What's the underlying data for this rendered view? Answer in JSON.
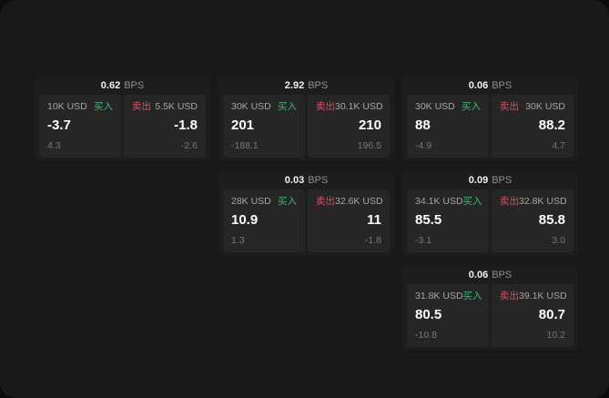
{
  "labels": {
    "bps_unit": "BPS",
    "buy": "买入",
    "sell": "卖出"
  },
  "colors": {
    "backdrop": "#0c0c0c",
    "surface": "#191919",
    "card": "#1d1d1d",
    "panel": "#262626",
    "buy_green": "#3dba76",
    "sell_red": "#cf5466"
  },
  "cards": [
    {
      "bps": "0.62",
      "buy": {
        "amount": "10K USD",
        "price": "-3.7",
        "change": "4.3"
      },
      "sell": {
        "amount": "5.5K USD",
        "price": "-1.8",
        "change": "-2.6"
      }
    },
    {
      "bps": "2.92",
      "buy": {
        "amount": "30K USD",
        "price": "201",
        "change": "-188.1"
      },
      "sell": {
        "amount": "30.1K USD",
        "price": "210",
        "change": "196.5"
      }
    },
    {
      "bps": "0.06",
      "buy": {
        "amount": "30K USD",
        "price": "88",
        "change": "-4.9"
      },
      "sell": {
        "amount": "30K USD",
        "price": "88.2",
        "change": "4.7"
      }
    },
    {
      "bps": "0.03",
      "buy": {
        "amount": "28K USD",
        "price": "10.9",
        "change": "1.3"
      },
      "sell": {
        "amount": "32.6K USD",
        "price": "11",
        "change": "-1.8"
      }
    },
    {
      "bps": "0.09",
      "buy": {
        "amount": "34.1K USD",
        "price": "85.5",
        "change": "-3.1"
      },
      "sell": {
        "amount": "32.8K USD",
        "price": "85.8",
        "change": "3.0"
      }
    },
    {
      "bps": "0.06",
      "buy": {
        "amount": "31.8K USD",
        "price": "80.5",
        "change": "-10.8"
      },
      "sell": {
        "amount": "39.1K USD",
        "price": "80.7",
        "change": "10.2"
      }
    }
  ]
}
